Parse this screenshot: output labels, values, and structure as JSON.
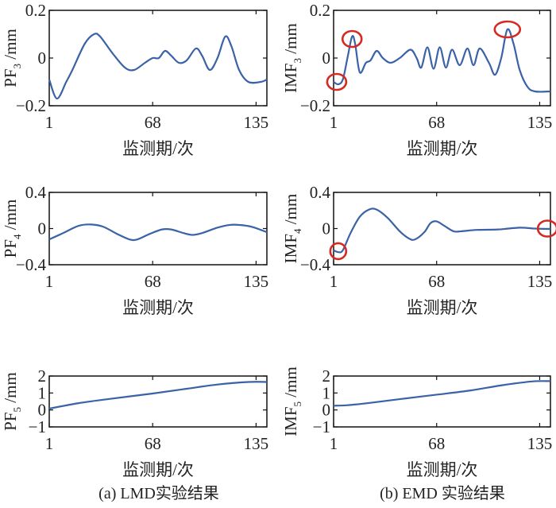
{
  "colors": {
    "line": "#3a62a6",
    "circle": "#d42a22",
    "axis": "#111111"
  },
  "captions": {
    "left": "(a) LMD实验结果",
    "right": "(b) EMD 实验结果"
  },
  "chart_data": [
    {
      "type": "line",
      "id": "pf3",
      "ylabel_main": "PF",
      "ylabel_sub": "3",
      "ylabel_unit": " /mm",
      "xlabel": "监测期/次",
      "xlim": [
        1,
        142
      ],
      "ylim": [
        -0.2,
        0.2
      ],
      "xticks": [
        1,
        68,
        135
      ],
      "yticks": [
        -0.2,
        0,
        0.2
      ],
      "ytick_labels": [
        "−0.2",
        "0",
        "0.2"
      ],
      "x": [
        1,
        6,
        12,
        16,
        24,
        30,
        34,
        42,
        50,
        56,
        63,
        68,
        72,
        76,
        80,
        85,
        90,
        96,
        100,
        105,
        110,
        115,
        119,
        124,
        130,
        138,
        142
      ],
      "y": [
        -0.09,
        -0.17,
        -0.1,
        -0.05,
        0.06,
        0.1,
        0.09,
        0.02,
        -0.04,
        -0.05,
        -0.02,
        0.0,
        0.0,
        0.03,
        0.01,
        -0.02,
        -0.01,
        0.04,
        0.01,
        -0.05,
        0.0,
        0.09,
        0.05,
        -0.05,
        -0.1,
        -0.1,
        -0.09
      ],
      "markers": []
    },
    {
      "type": "line",
      "id": "imf3",
      "ylabel_main": "IMF",
      "ylabel_sub": "3",
      "ylabel_unit": " /mm",
      "xlabel": "监测期/次",
      "xlim": [
        1,
        142
      ],
      "ylim": [
        -0.2,
        0.2
      ],
      "xticks": [
        1,
        68,
        135
      ],
      "yticks": [
        -0.2,
        0,
        0.2
      ],
      "ytick_labels": [
        "−0.2",
        "0",
        "0.2"
      ],
      "x": [
        1,
        4,
        7,
        10,
        13,
        15,
        18,
        22,
        25,
        29,
        33,
        38,
        44,
        51,
        55,
        58,
        62,
        66,
        70,
        74,
        78,
        83,
        88,
        92,
        96,
        102,
        106,
        110,
        114,
        118,
        122,
        127,
        132,
        142
      ],
      "y": [
        -0.1,
        -0.11,
        -0.09,
        0.0,
        0.09,
        0.06,
        -0.06,
        -0.02,
        -0.01,
        0.03,
        0.0,
        -0.02,
        0.0,
        0.035,
        0.0,
        -0.04,
        0.045,
        -0.045,
        0.045,
        -0.04,
        0.035,
        -0.03,
        0.04,
        -0.03,
        0.04,
        -0.02,
        -0.07,
        0.0,
        0.12,
        0.06,
        -0.05,
        -0.12,
        -0.14,
        -0.14
      ],
      "markers": [
        {
          "x": 3,
          "y": -0.1,
          "rx": 1.2
        },
        {
          "x": 13,
          "y": 0.08,
          "rx": 1.2
        },
        {
          "x": 114,
          "y": 0.12,
          "rx": 1.6
        }
      ]
    },
    {
      "type": "line",
      "id": "pf4",
      "ylabel_main": "PF",
      "ylabel_sub": "4",
      "ylabel_unit": " /mm",
      "xlabel": "监测期/次",
      "xlim": [
        1,
        142
      ],
      "ylim": [
        -0.4,
        0.4
      ],
      "xticks": [
        1,
        68,
        135
      ],
      "yticks": [
        -0.4,
        0,
        0.4
      ],
      "ytick_labels": [
        "−0.4",
        "0",
        "0.4"
      ],
      "x": [
        1,
        10,
        20,
        28,
        36,
        45,
        53,
        58,
        66,
        74,
        80,
        88,
        94,
        100,
        110,
        118,
        124,
        132,
        142
      ],
      "y": [
        -0.12,
        -0.05,
        0.03,
        0.045,
        0.02,
        -0.06,
        -0.12,
        -0.12,
        -0.06,
        -0.01,
        -0.01,
        -0.05,
        -0.07,
        -0.05,
        0.01,
        0.04,
        0.04,
        0.02,
        -0.04
      ],
      "markers": []
    },
    {
      "type": "line",
      "id": "imf4",
      "ylabel_main": "IMF",
      "ylabel_sub": "4",
      "ylabel_unit": " /mm",
      "xlabel": "监测期/次",
      "xlim": [
        1,
        142
      ],
      "ylim": [
        -0.4,
        0.4
      ],
      "xticks": [
        1,
        68,
        135
      ],
      "yticks": [
        -0.4,
        0,
        0.4
      ],
      "ytick_labels": [
        "−0.4",
        "0",
        "0.4"
      ],
      "x": [
        1,
        4,
        7,
        12,
        18,
        24,
        29,
        36,
        44,
        50,
        54,
        60,
        64,
        68,
        73,
        79,
        84,
        94,
        108,
        122,
        132,
        142
      ],
      "y": [
        -0.24,
        -0.26,
        -0.24,
        -0.05,
        0.13,
        0.21,
        0.21,
        0.12,
        -0.03,
        -0.11,
        -0.12,
        -0.04,
        0.06,
        0.08,
        0.03,
        -0.03,
        -0.03,
        -0.015,
        -0.01,
        0.01,
        0.0,
        -0.005
      ],
      "markers": [
        {
          "x": 4,
          "y": -0.25,
          "rx": 1.0
        },
        {
          "x": 140,
          "y": 0.0,
          "rx": 1.2
        }
      ]
    },
    {
      "type": "line",
      "id": "pf5",
      "ylabel_main": "PF",
      "ylabel_sub": "5",
      "ylabel_unit": " /mm",
      "xlabel": "监测期/次",
      "xlim": [
        1,
        142
      ],
      "ylim": [
        -1,
        2
      ],
      "xticks": [
        1,
        68,
        135
      ],
      "yticks": [
        -1,
        0,
        1,
        2
      ],
      "ytick_labels": [
        "−1",
        "0",
        "1",
        "2"
      ],
      "x": [
        1,
        20,
        40,
        68,
        90,
        110,
        130,
        142
      ],
      "y": [
        0.08,
        0.4,
        0.65,
        0.97,
        1.25,
        1.5,
        1.65,
        1.65
      ],
      "markers": []
    },
    {
      "type": "line",
      "id": "imf5",
      "ylabel_main": "IMF",
      "ylabel_sub": "5",
      "ylabel_unit": " /mm",
      "xlabel": "监测期/次",
      "xlim": [
        1,
        142
      ],
      "ylim": [
        -1,
        2
      ],
      "xticks": [
        1,
        68,
        135
      ],
      "yticks": [
        -1,
        0,
        1,
        2
      ],
      "ytick_labels": [
        "−1",
        "0",
        "1",
        "2"
      ],
      "x": [
        1,
        10,
        25,
        45,
        68,
        90,
        110,
        130,
        142
      ],
      "y": [
        0.25,
        0.28,
        0.42,
        0.65,
        0.9,
        1.15,
        1.45,
        1.68,
        1.7
      ],
      "markers": []
    }
  ]
}
